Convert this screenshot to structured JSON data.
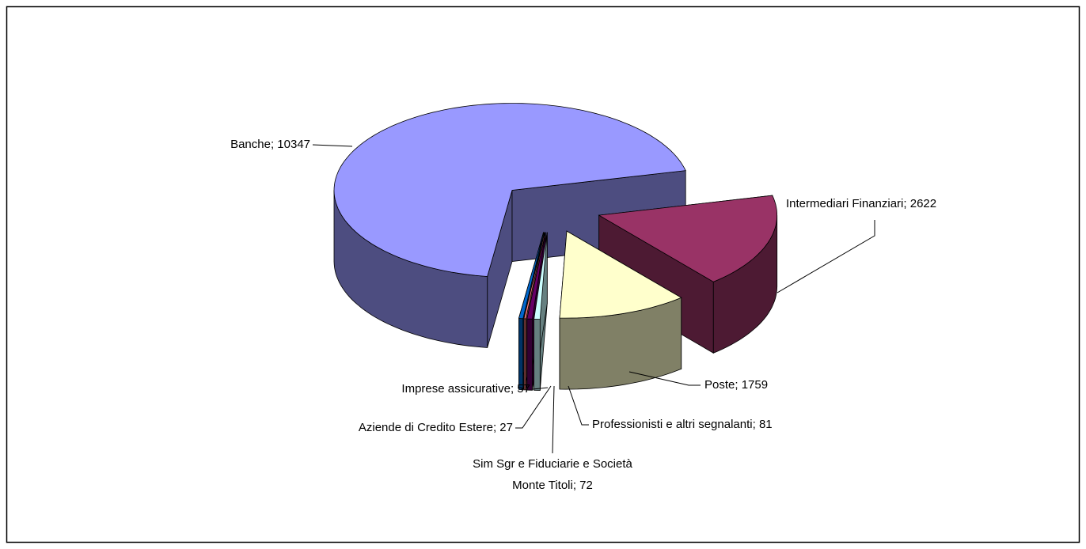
{
  "chart_data": {
    "type": "pie3d",
    "values": [
      10347,
      2622,
      1759,
      81,
      72,
      27,
      57
    ],
    "value_labels": [
      "Banche; 10347",
      "Intermediari Finanziari; 2622",
      "Poste; 1759",
      "Professionisti e altri segnalanti; 81",
      "Sim Sgr e Fiduciarie e Società\nMonte Titoli; 72",
      "Aziende di Credito Estere; 27",
      "Imprese assicurative; 57"
    ],
    "colors": [
      "#9999ff",
      "#993366",
      "#ffffcc",
      "#ccffff",
      "#660066",
      "#ff8080",
      "#0066cc"
    ]
  }
}
